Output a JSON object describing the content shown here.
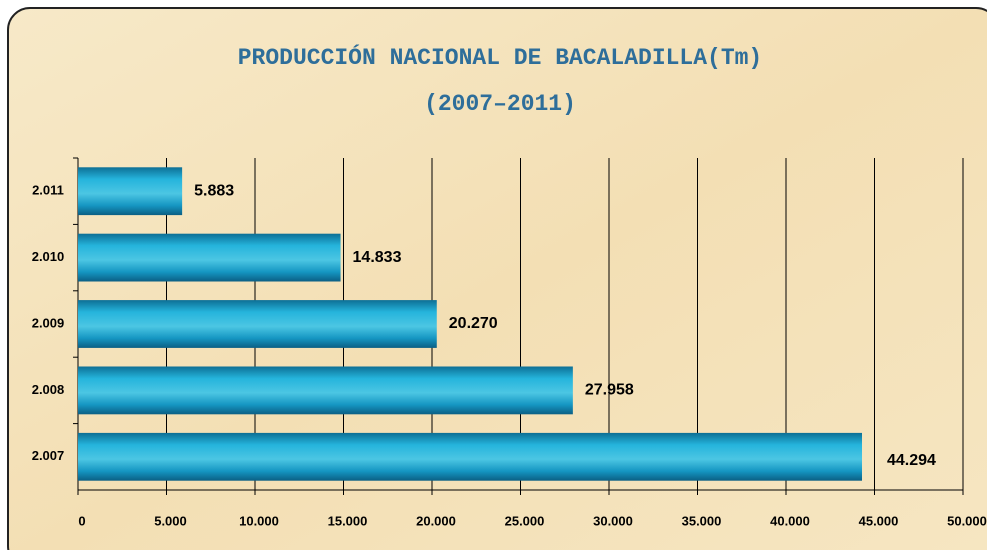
{
  "chart_data": {
    "type": "bar",
    "orientation": "horizontal",
    "title": "PRODUCCIÓN NACIONAL DE BACALADILLA(Tm)",
    "subtitle": "(2007–2011)",
    "categories": [
      "2.011",
      "2.010",
      "2.009",
      "2.008",
      "2.007"
    ],
    "values": [
      5883,
      14833,
      20270,
      27958,
      44294
    ],
    "value_labels": [
      "5.883",
      "14.833",
      "20.270",
      "27.958",
      "44.294"
    ],
    "color": "#1aa8d0",
    "xlim": [
      0,
      50000
    ],
    "xticks": [
      0,
      {
        "value": 5000,
        "label": "5.000"
      },
      {
        "value": 10000,
        "label": "10.000"
      },
      {
        "value": 15000,
        "label": "15.000"
      },
      {
        "value": 20000,
        "label": "20.000"
      },
      {
        "value": 25000,
        "label": "25.000"
      },
      {
        "value": 30000,
        "label": "30.000"
      },
      {
        "value": 35000,
        "label": "35.000"
      },
      {
        "value": 40000,
        "label": "40.000"
      },
      {
        "value": 45000,
        "label": "45.000"
      },
      {
        "value": 50000,
        "label": "50.000"
      }
    ],
    "grid": true
  }
}
